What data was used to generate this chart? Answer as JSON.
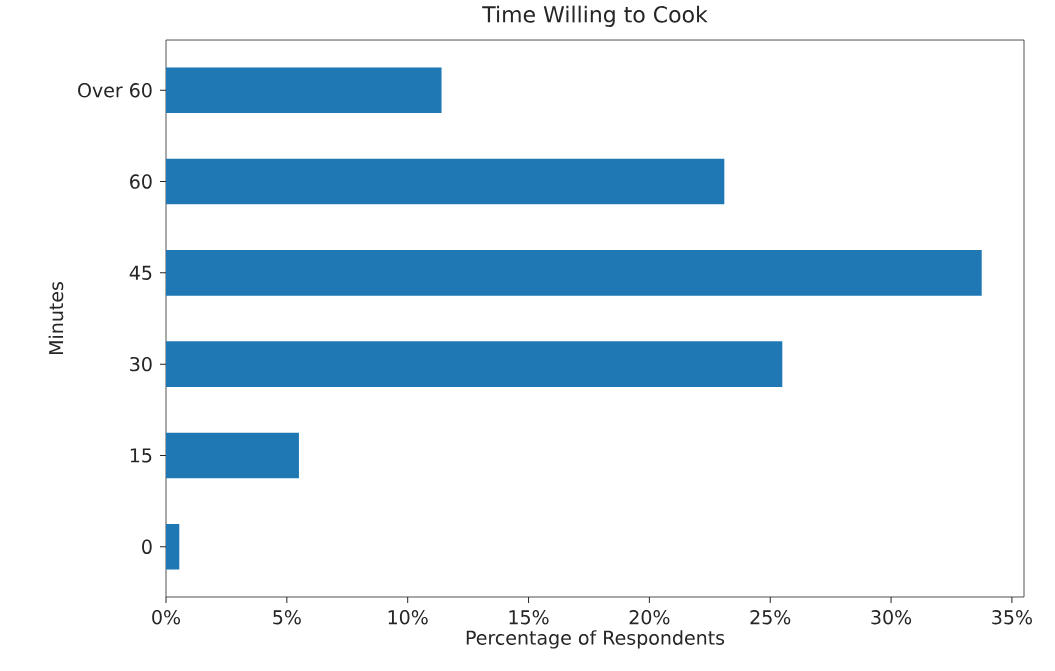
{
  "chart_data": {
    "type": "bar",
    "orientation": "horizontal",
    "title": "Time Willing to Cook",
    "xlabel": "Percentage of Respondents",
    "ylabel": "Minutes",
    "categories": [
      "Over 60",
      "60",
      "45",
      "30",
      "15",
      "0"
    ],
    "values": [
      11.4,
      23.1,
      33.75,
      25.5,
      5.5,
      0.55
    ],
    "color": "#1f77b4",
    "xlim": [
      0,
      35.5
    ],
    "xticks": [
      {
        "value": 0,
        "label": "0%"
      },
      {
        "value": 5,
        "label": "5%"
      },
      {
        "value": 10,
        "label": "10%"
      },
      {
        "value": 15,
        "label": "15%"
      },
      {
        "value": 20,
        "label": "20%"
      },
      {
        "value": 25,
        "label": "25%"
      },
      {
        "value": 30,
        "label": "30%"
      },
      {
        "value": 35,
        "label": "35%"
      }
    ]
  }
}
